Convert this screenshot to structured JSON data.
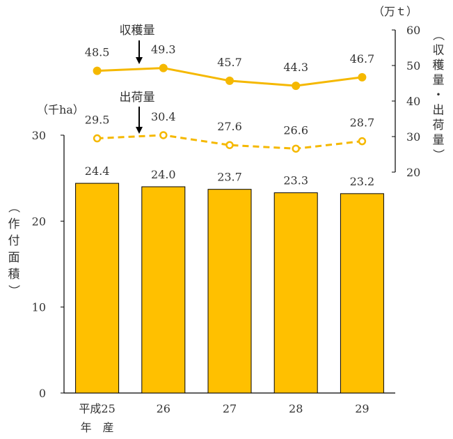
{
  "chart_data": {
    "type": "bar",
    "categories": [
      "平成25\n年　産",
      "26",
      "27",
      "28",
      "29"
    ],
    "bar_series": {
      "name": "作付面積",
      "values": [
        24.4,
        24.0,
        23.7,
        23.3,
        23.2
      ],
      "labels": [
        "24.4",
        "24.0",
        "23.7",
        "23.3",
        "23.2"
      ],
      "axis": "left"
    },
    "line_series": [
      {
        "name": "収穫量",
        "values": [
          48.5,
          49.3,
          45.7,
          44.3,
          46.7
        ],
        "labels": [
          "48.5",
          "49.3",
          "45.7",
          "44.3",
          "46.7"
        ],
        "axis": "right",
        "style": "solid",
        "marker": "filled-circle"
      },
      {
        "name": "出荷量",
        "values": [
          29.5,
          30.4,
          27.6,
          26.6,
          28.7
        ],
        "labels": [
          "29.5",
          "30.4",
          "27.6",
          "26.6",
          "28.7"
        ],
        "axis": "right",
        "style": "dashed",
        "marker": "hollow-circle"
      }
    ],
    "left_axis": {
      "unit": "（千ha）",
      "label": "（作付面積）",
      "ylim": [
        0,
        30
      ],
      "ticks": [
        0,
        10,
        20,
        30
      ],
      "tick_labels": [
        "0",
        "10",
        "20",
        "30"
      ]
    },
    "right_axis": {
      "unit": "（万ｔ）",
      "label": "（収穫量・出荷量）",
      "ylim": [
        20,
        60
      ],
      "ticks": [
        20,
        30,
        40,
        50,
        60
      ],
      "tick_labels": [
        "20",
        "30",
        "40",
        "50",
        "60"
      ]
    },
    "annotations": [
      {
        "text": "収穫量",
        "arrow": "down",
        "target_series": 0,
        "target_index": 0
      },
      {
        "text": "出荷量",
        "arrow": "down",
        "target_series": 1,
        "target_index": 0
      }
    ],
    "grid": false,
    "legend": "none",
    "colors": {
      "bar": "#FFC000",
      "bar_edge": "#000000",
      "line": "#F5B800",
      "axis": "#000000",
      "text": "#333333"
    }
  }
}
